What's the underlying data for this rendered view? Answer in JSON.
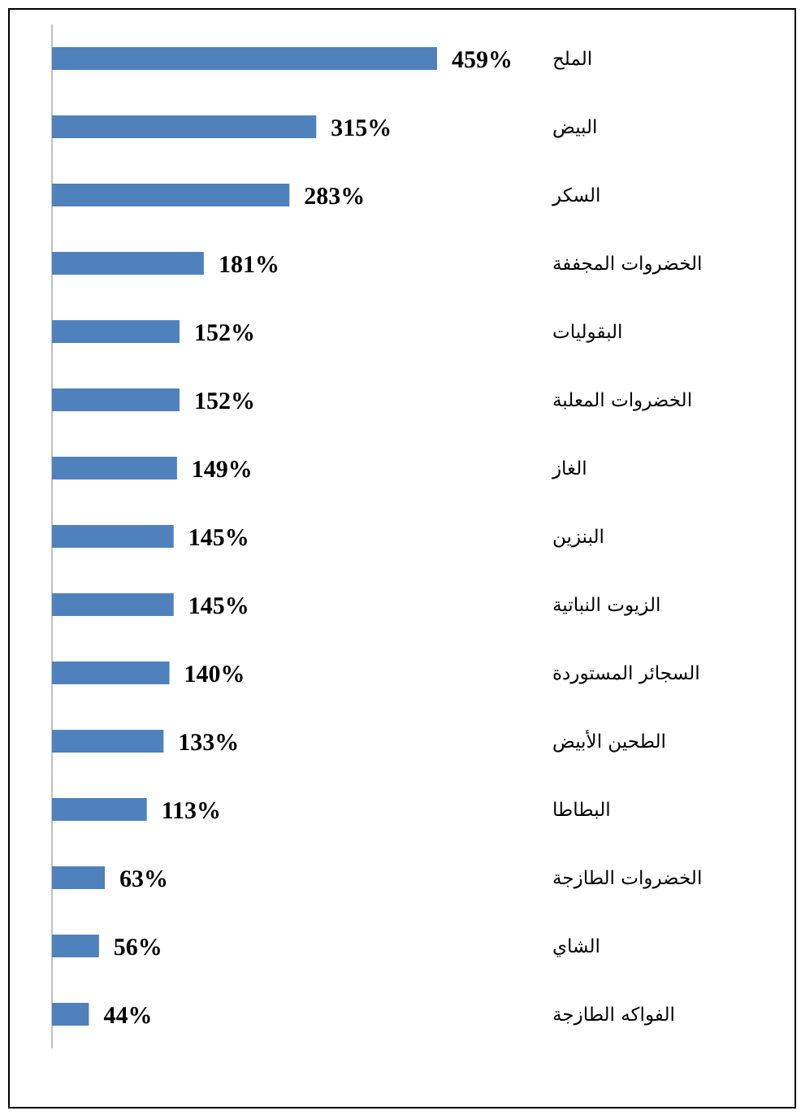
{
  "chart_data": {
    "type": "bar",
    "orientation": "horizontal",
    "categories": [
      "الملح",
      "البيض",
      "السكر",
      "الخضروات المجففة",
      "البقوليات",
      "الخضروات المعلبة",
      "الغاز",
      "البنزين",
      "الزيوت النباتية",
      "السجائر المستوردة",
      "الطحين الأبيض",
      "البطاطا",
      "الخضروات الطازجة",
      "الشاي",
      "الفواكه الطازجة"
    ],
    "values": [
      459,
      315,
      283,
      181,
      152,
      152,
      149,
      145,
      145,
      140,
      133,
      113,
      63,
      56,
      44
    ],
    "value_labels": [
      "459%",
      "315%",
      "283%",
      "181%",
      "152%",
      "152%",
      "149%",
      "145%",
      "145%",
      "140%",
      "133%",
      "113%",
      "63%",
      "56%",
      "44%"
    ],
    "color": "#4f81bd",
    "tick_labels": "y"
  }
}
